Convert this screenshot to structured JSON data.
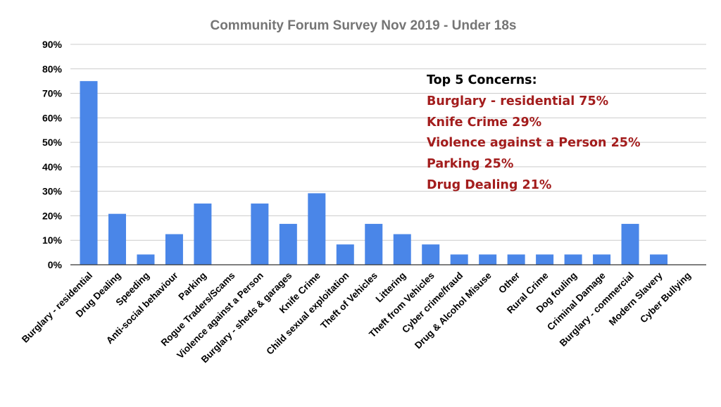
{
  "chart_data": {
    "type": "bar",
    "title": "Community Forum Survey Nov 2019 - Under 18s",
    "xlabel": "",
    "ylabel": "",
    "ylim": [
      0,
      90
    ],
    "yticks": [
      "0%",
      "10%",
      "20%",
      "30%",
      "40%",
      "50%",
      "60%",
      "70%",
      "80%",
      "90%"
    ],
    "y_unit": "%",
    "grid": true,
    "bar_color": "#4a86e8",
    "categories": [
      "Burglary - residential",
      "Drug Dealing",
      "Speeding",
      "Anti-social behaviour",
      "Parking",
      "Rogue Traders/Scams",
      "Violence against a Person",
      "Burglary - sheds & garages",
      "Knife Crime",
      "Child sexual exploitation",
      "Theft of Vehicles",
      "Littering",
      "Theft from Vehicles",
      "Cyber crime/fraud",
      "Drug & Alcohol Misuse",
      "Other",
      "Rural Crime",
      "Dog fouling",
      "Criminal Damage",
      "Burglary - commercial",
      "Modern Slavery",
      "Cyber Bullying"
    ],
    "values": [
      75,
      20.8,
      4.2,
      12.5,
      25,
      0,
      25,
      16.7,
      29.2,
      8.3,
      16.7,
      12.5,
      8.3,
      4.2,
      4.2,
      4.2,
      4.2,
      4.2,
      4.2,
      16.7,
      4.2,
      0
    ]
  },
  "annotation": {
    "heading": "Top 5 Concerns:",
    "heading_color": "#000000",
    "item_color": "#a31d1d",
    "items": [
      "Burglary - residential  75%",
      "Knife Crime  29%",
      "Violence against a Person  25%",
      "Parking  25%",
      "Drug Dealing   21%"
    ]
  }
}
